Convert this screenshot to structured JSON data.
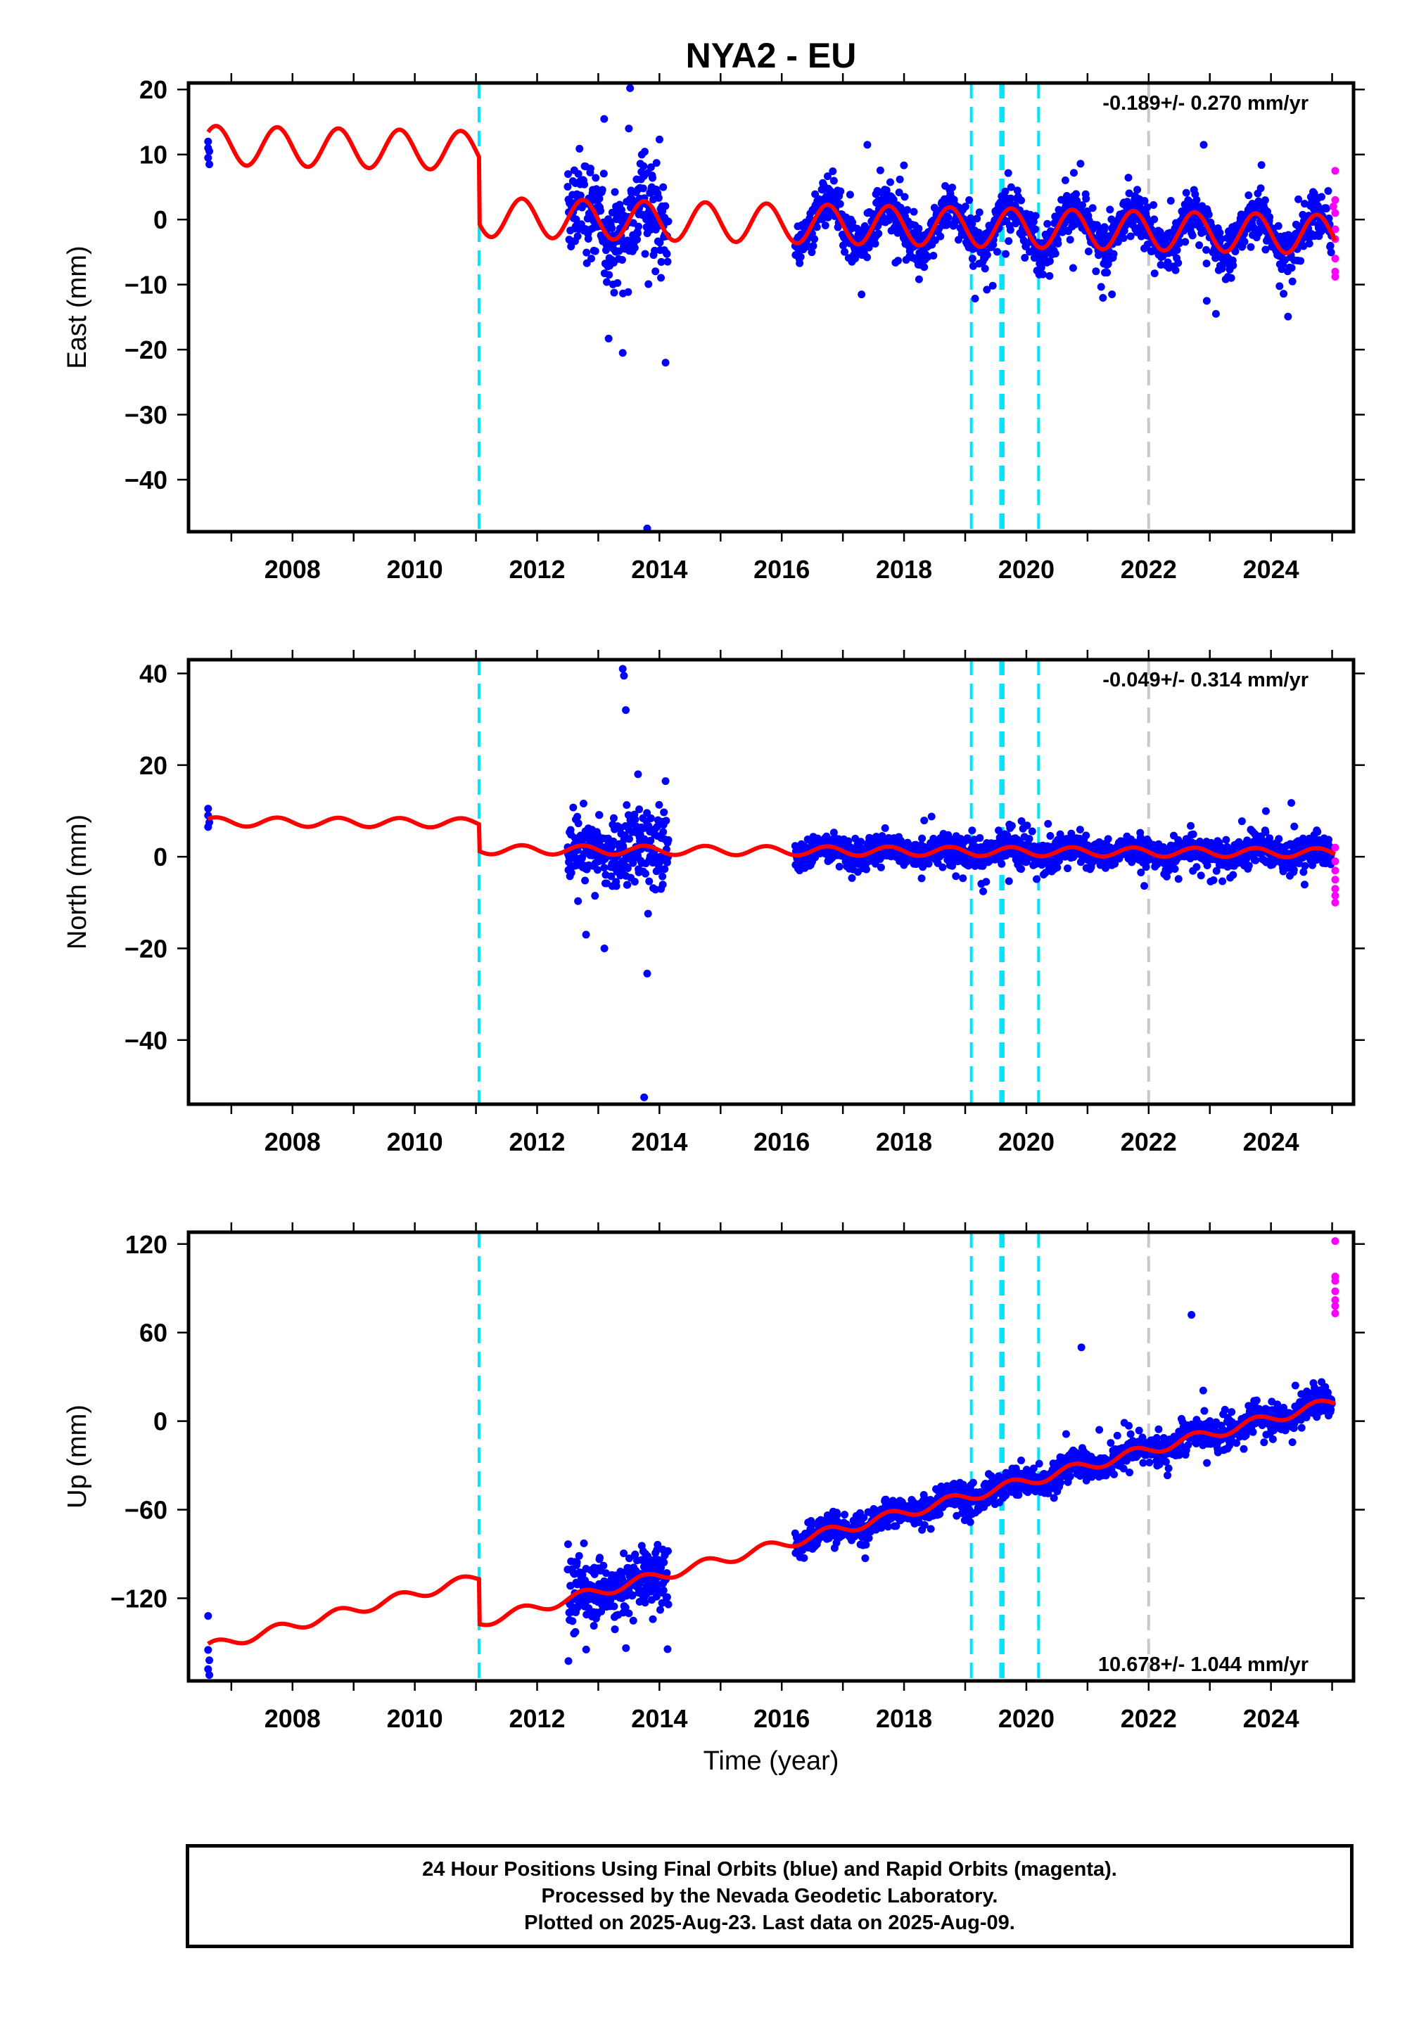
{
  "title": "NYA2 - EU",
  "xlabel": "Time (year)",
  "footer": {
    "line1": "24 Hour Positions Using Final Orbits (blue) and Rapid Orbits (magenta).",
    "line2": "Processed by the Nevada Geodetic Laboratory.",
    "line3": "Plotted on 2025-Aug-23. Last data on 2025-Aug-09."
  },
  "colors": {
    "final_orbits": "#0000ff",
    "rapid_orbits": "#ff00ff",
    "model": "#ff0000",
    "equipment_change": "#00e5ff",
    "earthquake": "#c8c8c8"
  },
  "chart_data": [
    {
      "type": "scatter",
      "component": "east",
      "ylabel": "East (mm)",
      "xlim": [
        2006.8,
        2025.85
      ],
      "ylim": [
        -48,
        21
      ],
      "xticks": [
        2008,
        2010,
        2012,
        2014,
        2016,
        2018,
        2020,
        2022,
        2024
      ],
      "yticks": [
        20,
        10,
        0,
        -10,
        -20,
        -30,
        -40
      ],
      "rate_label": "-0.189+/- 0.270 mm/yr",
      "rate_position": "top-right",
      "offsets_cyan": [
        2011.55,
        2019.6,
        2020.08,
        2020.12,
        2020.7
      ],
      "offsets_gray": [
        2022.5
      ],
      "model": {
        "pre_mean": 11,
        "post_mean": -1,
        "amplitude": 3,
        "trend_mm_per_yr": -0.189,
        "step_epoch": 2011.55
      },
      "outliers": [
        [
          2014.02,
          20.2
        ],
        [
          2014.0,
          14
        ],
        [
          2014.3,
          -47.5
        ],
        [
          2014.6,
          -22
        ],
        [
          2013.9,
          -20.5
        ],
        [
          2017.9,
          11.5
        ],
        [
          2023.4,
          11.5
        ],
        [
          2023.6,
          -14.5
        ],
        [
          2023.45,
          -12.5
        ],
        [
          2021.9,
          -11.5
        ]
      ],
      "rapid_points": [
        [
          2025.55,
          7.5
        ],
        [
          2025.55,
          3
        ],
        [
          2025.55,
          1
        ],
        [
          2025.55,
          -1.5
        ],
        [
          2025.55,
          -3
        ],
        [
          2025.55,
          -6
        ],
        [
          2025.55,
          -8
        ],
        [
          2025.55,
          -8.8
        ],
        [
          2025.52,
          2
        ]
      ],
      "early_points": [
        [
          2007.12,
          12
        ],
        [
          2007.12,
          11
        ],
        [
          2007.14,
          10.5
        ],
        [
          2007.12,
          9.5
        ],
        [
          2007.14,
          8.5
        ]
      ]
    },
    {
      "type": "scatter",
      "component": "north",
      "ylabel": "North (mm)",
      "xlim": [
        2006.8,
        2025.85
      ],
      "ylim": [
        -54,
        43
      ],
      "xticks": [
        2008,
        2010,
        2012,
        2014,
        2016,
        2018,
        2020,
        2022,
        2024
      ],
      "yticks": [
        40,
        20,
        0,
        -20,
        -40
      ],
      "rate_label": "-0.049+/- 0.314 mm/yr",
      "rate_position": "top-right",
      "offsets_cyan": [
        2011.55,
        2019.6,
        2020.08,
        2020.12,
        2020.7
      ],
      "offsets_gray": [
        2022.5
      ],
      "model": {
        "pre_mean": 7.5,
        "post_mean": 1.2,
        "amplitude": 1,
        "trend_mm_per_yr": -0.049,
        "step_epoch": 2011.55
      },
      "outliers": [
        [
          2013.9,
          41
        ],
        [
          2013.92,
          39.5
        ],
        [
          2013.95,
          32
        ],
        [
          2014.3,
          -25.5
        ],
        [
          2014.25,
          -52.5
        ],
        [
          2014.15,
          18
        ],
        [
          2014.6,
          16.5
        ],
        [
          2013.3,
          -17
        ],
        [
          2013.6,
          -20
        ]
      ],
      "rapid_points": [
        [
          2025.55,
          2
        ],
        [
          2025.55,
          -1
        ],
        [
          2025.55,
          -3
        ],
        [
          2025.55,
          -5
        ],
        [
          2025.55,
          -7
        ],
        [
          2025.55,
          -8.5
        ],
        [
          2025.55,
          -10
        ]
      ],
      "early_points": [
        [
          2007.12,
          10.5
        ],
        [
          2007.12,
          9
        ],
        [
          2007.14,
          7.5
        ],
        [
          2007.12,
          6.5
        ]
      ]
    },
    {
      "type": "scatter",
      "component": "up",
      "ylabel": "Up (mm)",
      "xlim": [
        2006.8,
        2025.85
      ],
      "ylim": [
        -176,
        128
      ],
      "xticks": [
        2008,
        2010,
        2012,
        2014,
        2016,
        2018,
        2020,
        2022,
        2024
      ],
      "yticks": [
        120,
        60,
        0,
        -60,
        -120
      ],
      "rate_label": "10.678+/- 1.044 mm/yr",
      "rate_position": "bottom-right",
      "offsets_cyan": [
        2011.55,
        2019.6,
        2020.08,
        2020.12,
        2020.7
      ],
      "offsets_gray": [
        2022.5
      ],
      "model": {
        "pre_mean": -130,
        "post_mean": -60,
        "amplitude": 3.5,
        "trend_mm_per_yr": 10.678,
        "step_epoch": 2011.55
      },
      "outliers": [
        [
          2014.0,
          -115
        ],
        [
          2013.3,
          -100
        ],
        [
          2021.4,
          50
        ],
        [
          2023.2,
          72
        ],
        [
          2017.4,
          -62
        ]
      ],
      "rapid_points": [
        [
          2025.55,
          122
        ],
        [
          2025.55,
          98
        ],
        [
          2025.55,
          95
        ],
        [
          2025.55,
          88
        ],
        [
          2025.55,
          82
        ],
        [
          2025.55,
          78
        ],
        [
          2025.55,
          73
        ]
      ],
      "early_points": [
        [
          2007.12,
          -132
        ],
        [
          2007.12,
          -155
        ],
        [
          2007.14,
          -162
        ],
        [
          2007.12,
          -168
        ],
        [
          2007.14,
          -172
        ]
      ]
    }
  ]
}
